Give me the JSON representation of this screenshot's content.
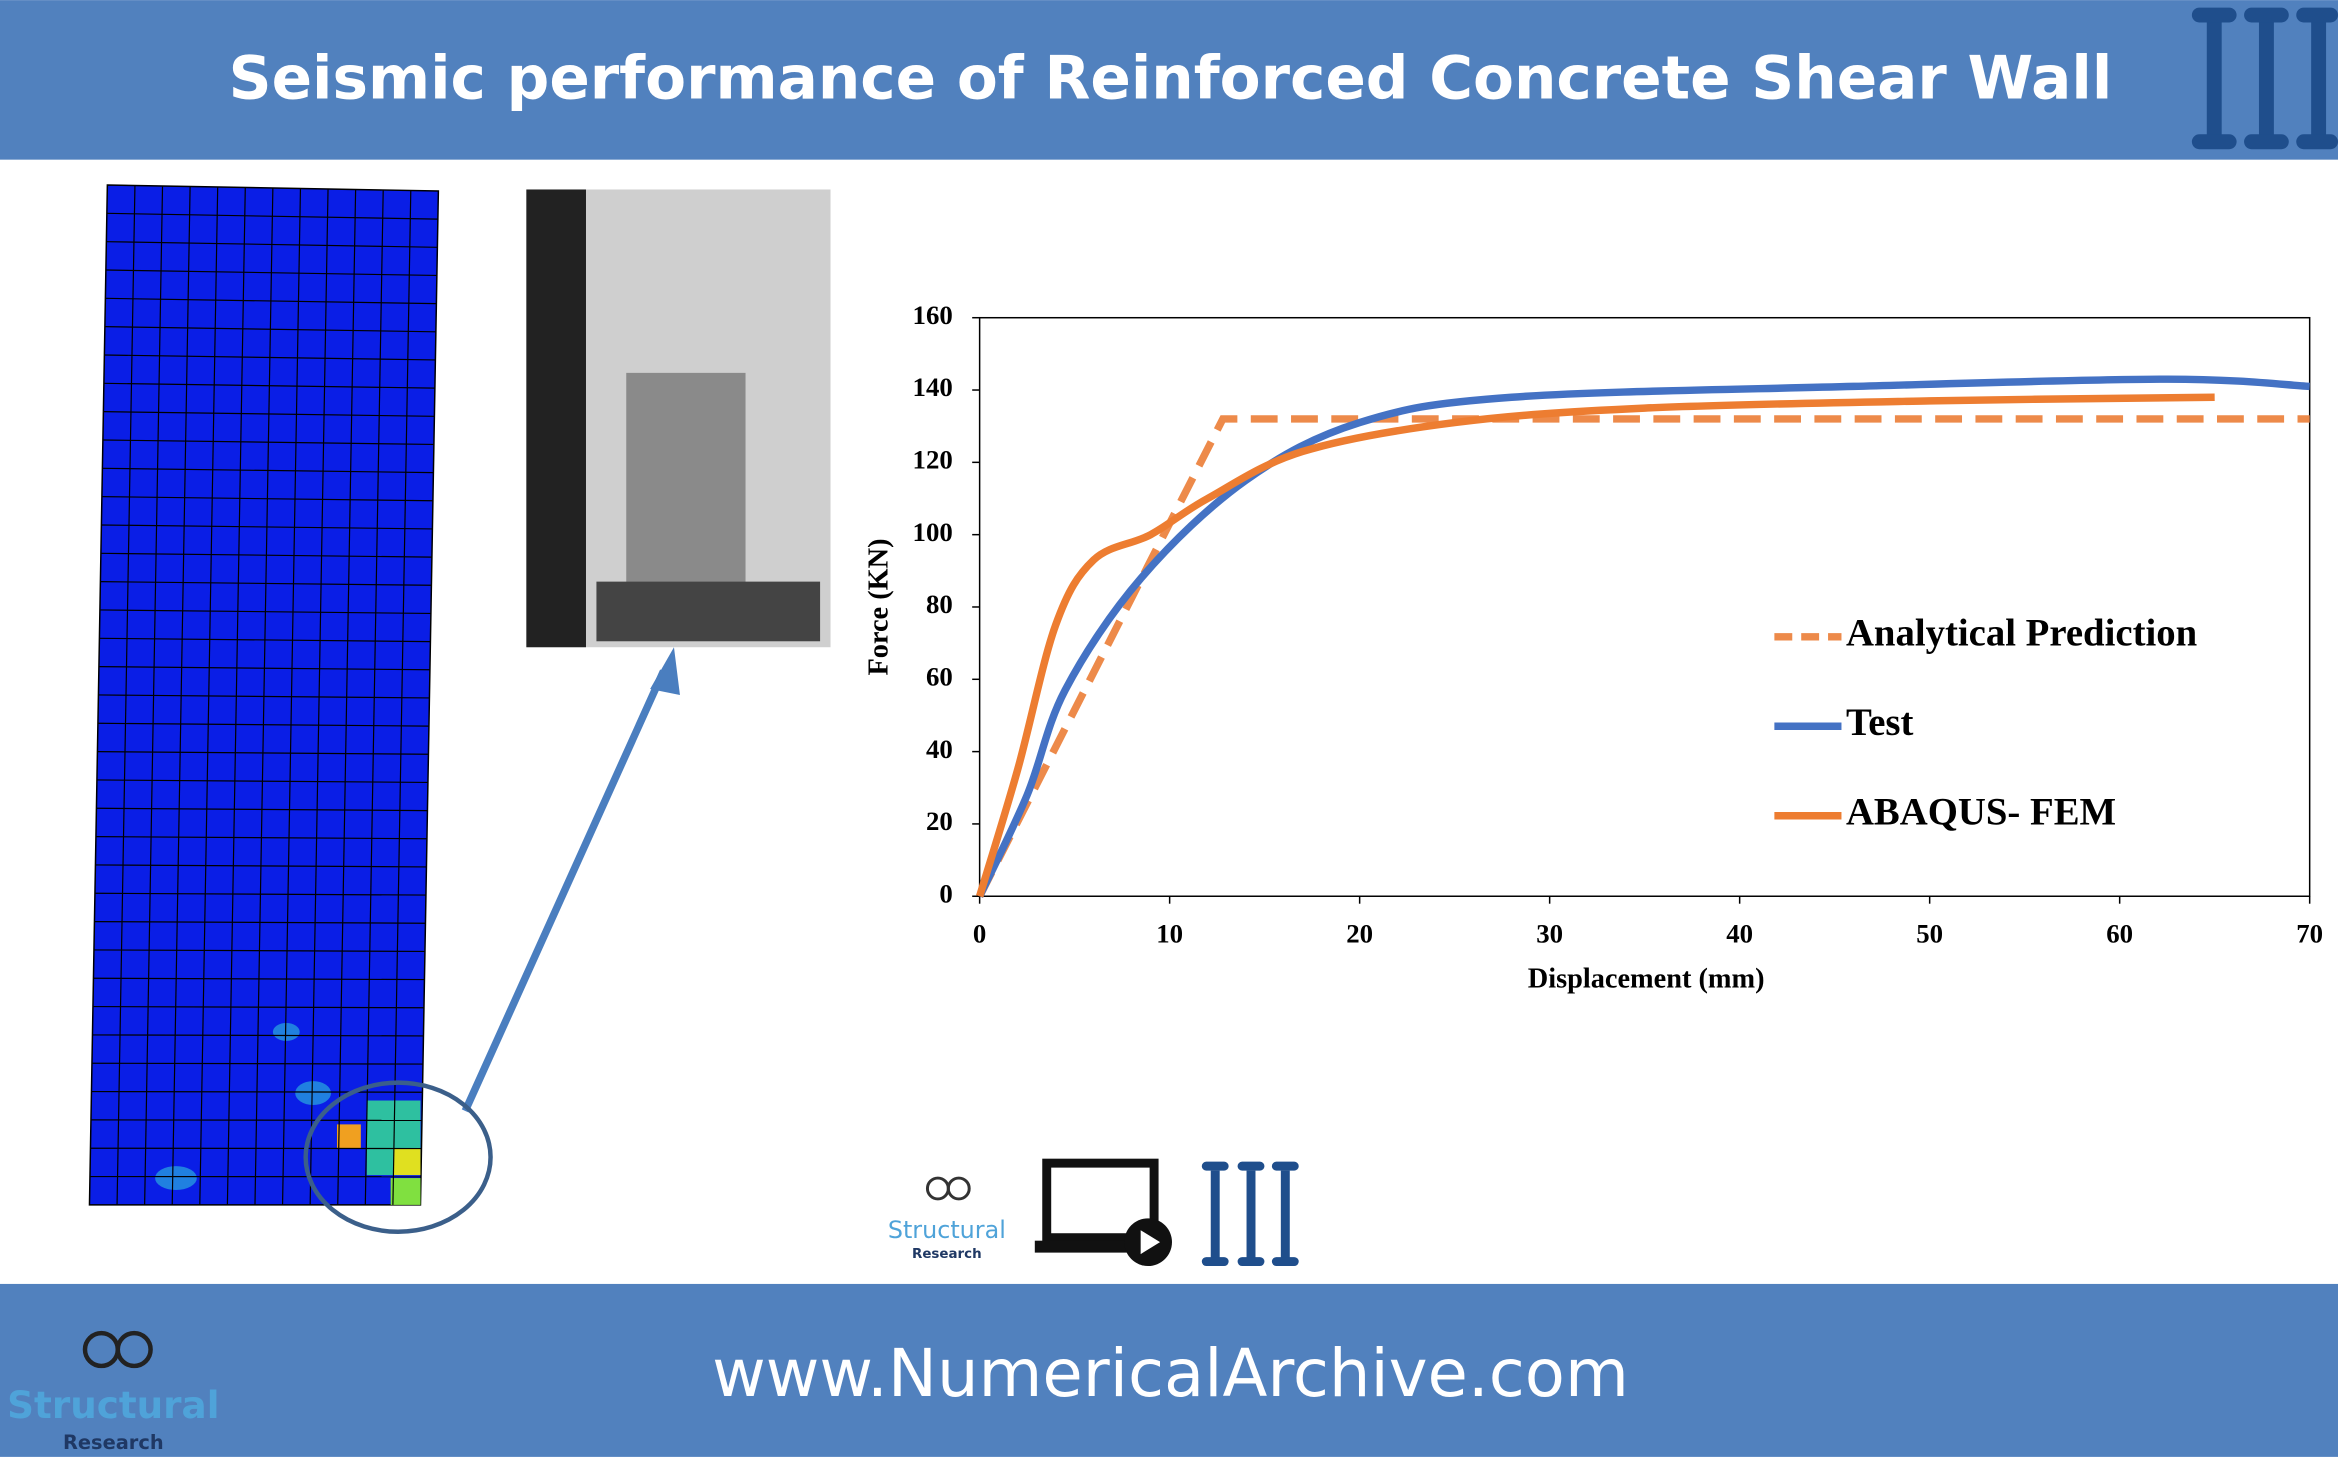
{
  "header": {
    "title": "Seismic performance of Reinforced Concrete Shear Wall"
  },
  "footer": {
    "url": "www.NumericalArchive.com"
  },
  "logos": {
    "small": {
      "name": "Structural",
      "sub": "Research"
    },
    "footer": {
      "name": "Structural",
      "sub": "Research"
    }
  },
  "chart_data": {
    "type": "line",
    "x_label": "Displacement (mm)",
    "y_label": "Force (KN)",
    "xlim": [
      0,
      70
    ],
    "xticks": [
      0,
      10,
      20,
      30,
      40,
      50,
      60,
      70
    ],
    "ylim": [
      0,
      160
    ],
    "yticks": [
      0,
      20,
      40,
      60,
      80,
      100,
      120,
      140,
      160
    ],
    "legend": "right",
    "series": [
      {
        "name": "Analytical Prediction",
        "color": "#ed8a4a",
        "dashed": true,
        "x": [
          0,
          12.8,
          70
        ],
        "values": [
          0,
          132,
          132
        ]
      },
      {
        "name": "Test",
        "color": "#4472c4",
        "dashed": false,
        "x": [
          0,
          2.5,
          4.5,
          8.5,
          14,
          20,
          28,
          46,
          62.5,
          70
        ],
        "values": [
          0,
          28,
          57,
          88,
          115,
          131,
          138,
          141,
          143,
          141
        ]
      },
      {
        "name": "ABAQUS- FEM",
        "color": "#ed7d31",
        "dashed": false,
        "x": [
          0,
          2,
          4,
          6,
          9,
          12,
          17,
          25,
          35,
          50,
          65
        ],
        "values": [
          0,
          35,
          75,
          93,
          100,
          110,
          123,
          131,
          135,
          137,
          138
        ]
      }
    ]
  }
}
